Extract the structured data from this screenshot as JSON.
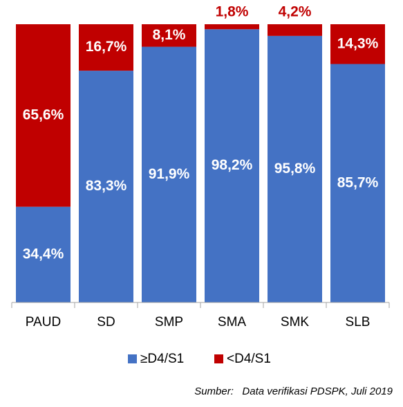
{
  "chart_data": {
    "type": "stacked_bar",
    "categories": [
      "PAUD",
      "SD",
      "SMP",
      "SMA",
      "SMK",
      "SLB"
    ],
    "series": [
      {
        "name": "≥D4/S1",
        "color": "#4472c4",
        "values": [
          34.4,
          83.3,
          91.9,
          98.2,
          95.8,
          85.7
        ],
        "value_labels": [
          "34,4%",
          "83,3%",
          "91,9%",
          "98,2%",
          "95,8%",
          "85,7%"
        ]
      },
      {
        "name": "<D4/S1",
        "color": "#c00000",
        "values": [
          65.6,
          16.7,
          8.1,
          1.8,
          4.2,
          14.3
        ],
        "value_labels": [
          "65,6%",
          "16,7%",
          "8,1%",
          "1,8%",
          "4,2%",
          "14,3%"
        ]
      }
    ],
    "legend": "bottom",
    "source": "Sumber:   Data verifikasi PDSPK, Juli 2019"
  }
}
